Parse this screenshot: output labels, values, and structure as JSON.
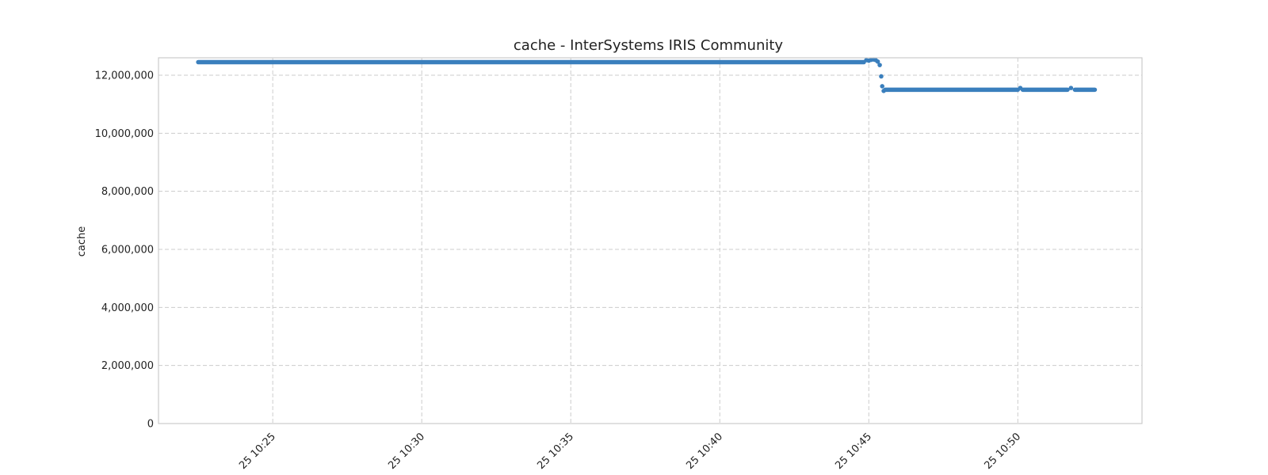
{
  "chart_data": {
    "type": "scatter",
    "title": "cache - InterSystems IRIS Community",
    "xlabel": "",
    "ylabel": "cache",
    "x_range": [
      "2024-01-25T10:21:10",
      "2024-01-25T10:54:10"
    ],
    "ylim": [
      0,
      12600000
    ],
    "y_ticks": [
      0,
      2000000,
      4000000,
      6000000,
      8000000,
      10000000,
      12000000
    ],
    "y_tick_labels": [
      "0",
      "2,000,000",
      "4,000,000",
      "6,000,000",
      "8,000,000",
      "10,000,000",
      "12,000,000"
    ],
    "x_ticks": [
      "2024-01-25T10:25:00",
      "2024-01-25T10:30:00",
      "2024-01-25T10:35:00",
      "2024-01-25T10:40:00",
      "2024-01-25T10:45:00",
      "2024-01-25T10:50:00"
    ],
    "x_tick_labels": [
      "25 10:25",
      "25 10:30",
      "25 10:35",
      "25 10:40",
      "25 10:45",
      "25 10:50"
    ],
    "grid": true,
    "color": "#3a7fbd",
    "series": [
      {
        "segments": [
          {
            "from": "2024-01-25T10:22:30",
            "to": "2024-01-25T10:44:50",
            "value": 12450000
          },
          {
            "from": "2024-01-25T10:45:33",
            "to": "2024-01-25T10:50:00",
            "value": 11500000
          },
          {
            "from": "2024-01-25T10:50:10",
            "to": "2024-01-25T10:51:40",
            "value": 11500000
          },
          {
            "from": "2024-01-25T10:51:55",
            "to": "2024-01-25T10:52:35",
            "value": 11500000
          }
        ],
        "points": [
          [
            "2024-01-25T10:44:55",
            12520000
          ],
          [
            "2024-01-25T10:45:00",
            12500000
          ],
          [
            "2024-01-25T10:45:05",
            12530000
          ],
          [
            "2024-01-25T10:45:10",
            12540000
          ],
          [
            "2024-01-25T10:45:14",
            12520000
          ],
          [
            "2024-01-25T10:45:18",
            12470000
          ],
          [
            "2024-01-25T10:45:22",
            12350000
          ],
          [
            "2024-01-25T10:45:25",
            11960000
          ],
          [
            "2024-01-25T10:45:27",
            11620000
          ],
          [
            "2024-01-25T10:45:30",
            11460000
          ],
          [
            "2024-01-25T10:50:05",
            11560000
          ],
          [
            "2024-01-25T10:51:47",
            11560000
          ]
        ]
      }
    ]
  }
}
